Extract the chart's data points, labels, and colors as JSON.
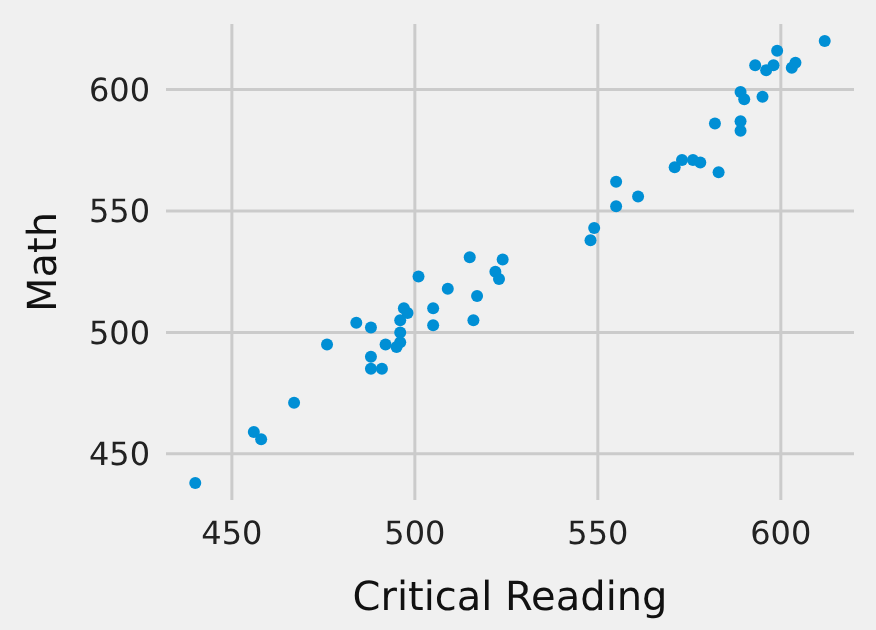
{
  "chart_data": {
    "type": "scatter",
    "xlabel": "Critical Reading",
    "ylabel": "Math",
    "xlim": [
      432,
      620
    ],
    "ylim": [
      431,
      627
    ],
    "xticks": [
      450,
      500,
      550,
      600
    ],
    "yticks": [
      450,
      500,
      550,
      600
    ],
    "grid": true,
    "marker": "circle",
    "series": [
      {
        "color": "#008fd5",
        "x": [
          440,
          456,
          458,
          467,
          476,
          484,
          488,
          488,
          488,
          491,
          492,
          495,
          496,
          496,
          496,
          497,
          498,
          501,
          505,
          505,
          509,
          515,
          516,
          517,
          522,
          523,
          524,
          548,
          549,
          555,
          555,
          561,
          571,
          573,
          576,
          578,
          582,
          583,
          589,
          589,
          589,
          590,
          593,
          595,
          596,
          598,
          599,
          603,
          604,
          612
        ],
        "values": [
          438,
          459,
          456,
          471,
          495,
          504,
          502,
          490,
          485,
          485,
          495,
          494,
          496,
          500,
          505,
          510,
          508,
          523,
          510,
          503,
          518,
          531,
          505,
          515,
          525,
          522,
          530,
          538,
          543,
          552,
          562,
          556,
          568,
          571,
          571,
          570,
          586,
          566,
          583,
          587,
          599,
          596,
          610,
          597,
          608,
          610,
          616,
          609,
          611,
          620
        ]
      }
    ]
  }
}
